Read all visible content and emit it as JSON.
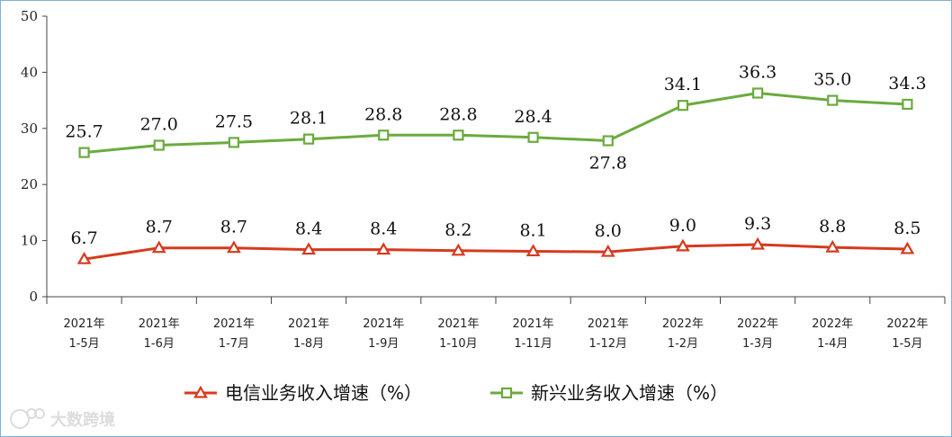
{
  "chart_data": {
    "type": "line",
    "title": "",
    "xlabel": "",
    "ylabel": "",
    "ylim": [
      0,
      50
    ],
    "yticks": [
      0,
      10,
      20,
      30,
      40,
      50
    ],
    "categories": [
      [
        "2021年",
        "1-5月"
      ],
      [
        "2021年",
        "1-6月"
      ],
      [
        "2021年",
        "1-7月"
      ],
      [
        "2021年",
        "1-8月"
      ],
      [
        "2021年",
        "1-9月"
      ],
      [
        "2021年",
        "1-10月"
      ],
      [
        "2021年",
        "1-11月"
      ],
      [
        "2021年",
        "1-12月"
      ],
      [
        "2022年",
        "1-2月"
      ],
      [
        "2022年",
        "1-3月"
      ],
      [
        "2022年",
        "1-4月"
      ],
      [
        "2022年",
        "1-5月"
      ]
    ],
    "series": [
      {
        "name": "电信业务收入增速（%）",
        "color": "#d63a1e",
        "marker": "triangle",
        "values": [
          6.7,
          8.7,
          8.7,
          8.4,
          8.4,
          8.2,
          8.1,
          8.0,
          9.0,
          9.3,
          8.8,
          8.5
        ],
        "labels": [
          "6.7",
          "8.7",
          "8.7",
          "8.4",
          "8.4",
          "8.2",
          "8.1",
          "8.0",
          "9.0",
          "9.3",
          "8.8",
          "8.5"
        ]
      },
      {
        "name": "新兴业务收入增速（%）",
        "color": "#6aab3e",
        "marker": "square",
        "values": [
          25.7,
          27.0,
          27.5,
          28.1,
          28.8,
          28.8,
          28.4,
          27.8,
          34.1,
          36.3,
          35.0,
          34.3
        ],
        "labels": [
          "25.7",
          "27.0",
          "27.5",
          "28.1",
          "28.8",
          "28.8",
          "28.4",
          "27.8",
          "34.1",
          "36.3",
          "35.0",
          "34.3"
        ]
      }
    ],
    "grid": false,
    "legend_position": "bottom-center"
  },
  "watermark": {
    "text": "大数跨境",
    "icon": "watermark-logo-icon"
  }
}
